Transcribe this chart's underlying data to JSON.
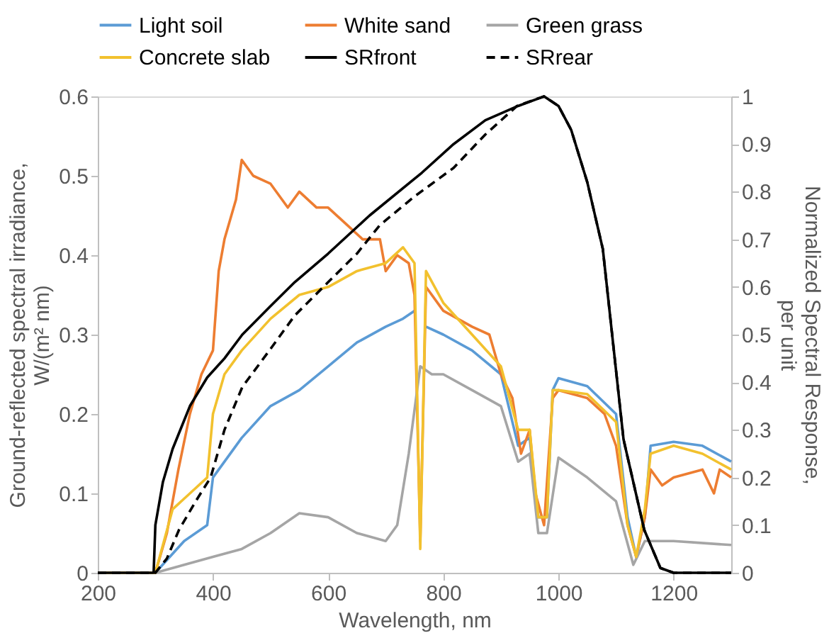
{
  "chart_data": {
    "type": "line",
    "xlabel": "Wavelength, nm",
    "ylabel": "Ground-reflected spectral irradiance, W/(m² nm)",
    "y2label": "Normalized Spectral Response, per unit",
    "xlim": [
      200,
      1300
    ],
    "xticks": [
      200,
      400,
      600,
      800,
      1000,
      1200
    ],
    "ylim": [
      0,
      0.6
    ],
    "yticks": [
      0,
      0.1,
      0.2,
      0.3,
      0.4,
      0.5,
      0.6
    ],
    "y2lim": [
      0,
      1
    ],
    "y2ticks": [
      0,
      0.1,
      0.2,
      0.3,
      0.4,
      0.5,
      0.6,
      0.7,
      0.8,
      0.9,
      1
    ],
    "grid": false,
    "legend": "top",
    "marker": "none",
    "line_style": "solid",
    "series": [
      {
        "name": "Light soil",
        "color": "#5b9bd5",
        "x": [
          200,
          300,
          350,
          390,
          400,
          450,
          500,
          550,
          600,
          650,
          700,
          730,
          750,
          760,
          770,
          800,
          850,
          900,
          930,
          950,
          965,
          980,
          990,
          1000,
          1050,
          1100,
          1120,
          1135,
          1150,
          1160,
          1200,
          1250,
          1300
        ],
        "values": [
          0,
          0,
          0.04,
          0.06,
          0.12,
          0.17,
          0.21,
          0.23,
          0.26,
          0.29,
          0.31,
          0.32,
          0.33,
          null,
          0.31,
          0.3,
          0.28,
          0.25,
          0.16,
          0.17,
          0.07,
          0.07,
          0.23,
          0.245,
          0.235,
          0.2,
          0.07,
          0.02,
          0.07,
          0.16,
          0.165,
          0.16,
          0.14
        ]
      },
      {
        "name": "White sand",
        "color": "#ed7d31",
        "x": [
          200,
          300,
          320,
          340,
          360,
          380,
          400,
          410,
          420,
          440,
          450,
          470,
          500,
          530,
          550,
          580,
          600,
          630,
          660,
          690,
          700,
          720,
          740,
          750,
          760,
          770,
          800,
          850,
          880,
          900,
          920,
          935,
          950,
          960,
          975,
          990,
          1000,
          1050,
          1080,
          1100,
          1120,
          1135,
          1150,
          1160,
          1180,
          1200,
          1250,
          1270,
          1280,
          1300
        ],
        "values": [
          0,
          0,
          0.05,
          0.13,
          0.2,
          0.25,
          0.28,
          0.38,
          0.42,
          0.47,
          0.52,
          0.5,
          0.49,
          0.46,
          0.48,
          0.46,
          0.46,
          0.44,
          0.42,
          0.42,
          0.38,
          0.4,
          0.39,
          0.35,
          0.04,
          0.36,
          0.33,
          0.31,
          0.3,
          0.25,
          0.22,
          0.15,
          0.18,
          0.1,
          0.06,
          0.22,
          0.23,
          0.22,
          0.2,
          0.16,
          0.06,
          0.02,
          0.07,
          0.13,
          0.11,
          0.12,
          0.13,
          0.1,
          0.13,
          0.12
        ]
      },
      {
        "name": "Green grass",
        "color": "#a5a5a5",
        "x": [
          200,
          300,
          350,
          400,
          450,
          500,
          550,
          600,
          650,
          700,
          720,
          740,
          760,
          780,
          800,
          850,
          900,
          930,
          950,
          965,
          980,
          1000,
          1050,
          1100,
          1130,
          1150,
          1200,
          1300
        ],
        "values": [
          0,
          0,
          0.01,
          0.02,
          0.03,
          0.05,
          0.075,
          0.07,
          0.05,
          0.04,
          0.06,
          0.15,
          0.26,
          0.25,
          0.25,
          0.23,
          0.21,
          0.14,
          0.15,
          0.05,
          0.05,
          0.145,
          0.12,
          0.09,
          0.01,
          0.04,
          0.04,
          0.035
        ]
      },
      {
        "name": "Concrete slab",
        "color": "#f2c12e",
        "x": [
          200,
          300,
          330,
          360,
          390,
          400,
          420,
          450,
          500,
          550,
          600,
          650,
          700,
          730,
          750,
          760,
          770,
          800,
          850,
          900,
          930,
          950,
          965,
          980,
          990,
          1000,
          1050,
          1100,
          1120,
          1135,
          1150,
          1160,
          1200,
          1250,
          1300
        ],
        "values": [
          0,
          0,
          0.08,
          0.1,
          0.12,
          0.2,
          0.25,
          0.28,
          0.32,
          0.35,
          0.36,
          0.38,
          0.39,
          0.41,
          0.39,
          0.03,
          0.38,
          0.34,
          0.3,
          0.26,
          0.18,
          0.18,
          0.07,
          0.07,
          0.23,
          0.23,
          0.225,
          0.19,
          0.06,
          0.02,
          0.08,
          0.15,
          0.16,
          0.15,
          0.13
        ]
      },
      {
        "name": "SRfront",
        "color": "#000000",
        "axis": "y2",
        "x": [
          200,
          297,
          300,
          313,
          330,
          360,
          390,
          420,
          451,
          500,
          542,
          600,
          672,
          763,
          818,
          873,
          930,
          975,
          1000,
          1022,
          1050,
          1077,
          1113,
          1149,
          1177,
          1200,
          1300
        ],
        "values": [
          0,
          0,
          0.1,
          0.19,
          0.26,
          0.35,
          0.41,
          0.45,
          0.5,
          0.56,
          0.61,
          0.67,
          0.75,
          0.84,
          0.9,
          0.95,
          0.98,
          1,
          0.98,
          0.93,
          0.82,
          0.68,
          0.28,
          0.09,
          0.01,
          0,
          0
        ]
      },
      {
        "name": "SRrear",
        "color": "#000000",
        "axis": "y2",
        "line_style": "dashed",
        "x": [
          200,
          300,
          320,
          341,
          370,
          396,
          420,
          451,
          500,
          542,
          600,
          650,
          690,
          750,
          818,
          873,
          928,
          975,
          1000,
          1022,
          1050,
          1077,
          1113,
          1149,
          1177,
          1200,
          1300
        ],
        "values": [
          0,
          0,
          0.03,
          0.09,
          0.15,
          0.2,
          0.3,
          0.39,
          0.47,
          0.54,
          0.61,
          0.67,
          0.73,
          0.79,
          0.85,
          0.92,
          0.98,
          1,
          0.98,
          0.93,
          0.82,
          0.68,
          0.28,
          0.09,
          0.01,
          0,
          0
        ]
      }
    ]
  }
}
